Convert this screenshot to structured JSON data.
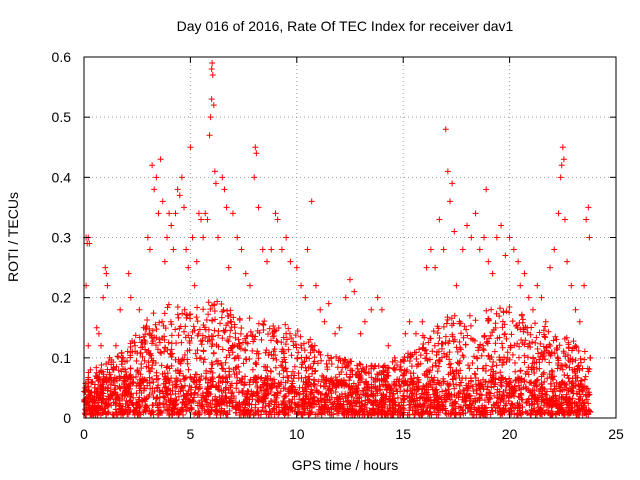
{
  "chart_data": {
    "type": "scatter",
    "title": "Day 016 of 2016, Rate Of TEC Index for receiver dav1",
    "xlabel": "GPS time / hours",
    "ylabel": "ROTI / TECUs",
    "xlim": [
      0,
      25
    ],
    "ylim": [
      0,
      0.6
    ],
    "xticks": [
      0,
      5,
      10,
      15,
      20,
      25
    ],
    "yticks": [
      0,
      0.1,
      0.2,
      0.3,
      0.4,
      0.5,
      0.6
    ],
    "xtick_labels": [
      "0",
      "5",
      "10",
      "15",
      "20",
      "25"
    ],
    "ytick_labels": [
      "0",
      "0.1",
      "0.2",
      "0.3",
      "0.4",
      "0.5",
      "0.6"
    ],
    "grid": true,
    "marker": "plus",
    "colors": {
      "series": "#ff0000",
      "grid": "#a0a0a0",
      "axes": "#000000"
    },
    "series": [
      {
        "points": [
          [
            0.0,
            0.03
          ],
          [
            0.05,
            0.05
          ],
          [
            0.1,
            0.3
          ],
          [
            0.15,
            0.29
          ],
          [
            0.2,
            0.3
          ],
          [
            0.25,
            0.29
          ],
          [
            0.1,
            0.22
          ],
          [
            0.2,
            0.12
          ],
          [
            0.3,
            0.08
          ],
          [
            0.4,
            0.06
          ],
          [
            0.5,
            0.05
          ],
          [
            0.6,
            0.15
          ],
          [
            0.7,
            0.14
          ],
          [
            0.8,
            0.12
          ],
          [
            0.9,
            0.2
          ],
          [
            1.0,
            0.25
          ],
          [
            1.05,
            0.24
          ],
          [
            1.1,
            0.22
          ],
          [
            1.2,
            0.1
          ],
          [
            1.4,
            0.08
          ],
          [
            1.5,
            0.12
          ],
          [
            1.7,
            0.18
          ],
          [
            1.8,
            0.1
          ],
          [
            2.0,
            0.07
          ],
          [
            2.1,
            0.24
          ],
          [
            2.2,
            0.2
          ],
          [
            2.4,
            0.12
          ],
          [
            2.6,
            0.18
          ],
          [
            2.8,
            0.15
          ],
          [
            3.0,
            0.3
          ],
          [
            3.1,
            0.28
          ],
          [
            3.2,
            0.42
          ],
          [
            3.3,
            0.38
          ],
          [
            3.4,
            0.4
          ],
          [
            3.5,
            0.34
          ],
          [
            3.6,
            0.43
          ],
          [
            3.7,
            0.36
          ],
          [
            3.8,
            0.26
          ],
          [
            3.9,
            0.3
          ],
          [
            4.0,
            0.34
          ],
          [
            4.1,
            0.32
          ],
          [
            4.2,
            0.28
          ],
          [
            4.3,
            0.34
          ],
          [
            4.4,
            0.38
          ],
          [
            4.5,
            0.37
          ],
          [
            4.6,
            0.4
          ],
          [
            4.7,
            0.35
          ],
          [
            4.8,
            0.28
          ],
          [
            4.9,
            0.25
          ],
          [
            5.0,
            0.45
          ],
          [
            5.1,
            0.3
          ],
          [
            5.2,
            0.22
          ],
          [
            5.3,
            0.26
          ],
          [
            5.4,
            0.34
          ],
          [
            5.5,
            0.33
          ],
          [
            5.6,
            0.3
          ],
          [
            5.7,
            0.34
          ],
          [
            5.8,
            0.33
          ],
          [
            5.9,
            0.47
          ],
          [
            5.95,
            0.5
          ],
          [
            6.0,
            0.53
          ],
          [
            6.0,
            0.58
          ],
          [
            6.02,
            0.59
          ],
          [
            6.05,
            0.57
          ],
          [
            6.1,
            0.52
          ],
          [
            6.15,
            0.41
          ],
          [
            6.2,
            0.39
          ],
          [
            6.3,
            0.3
          ],
          [
            6.5,
            0.4
          ],
          [
            6.6,
            0.38
          ],
          [
            6.7,
            0.35
          ],
          [
            6.8,
            0.25
          ],
          [
            7.0,
            0.34
          ],
          [
            7.2,
            0.3
          ],
          [
            7.4,
            0.28
          ],
          [
            7.6,
            0.24
          ],
          [
            7.8,
            0.22
          ],
          [
            8.0,
            0.4
          ],
          [
            8.05,
            0.45
          ],
          [
            8.1,
            0.44
          ],
          [
            8.2,
            0.35
          ],
          [
            8.4,
            0.28
          ],
          [
            8.6,
            0.26
          ],
          [
            8.8,
            0.28
          ],
          [
            9.0,
            0.34
          ],
          [
            9.1,
            0.33
          ],
          [
            9.3,
            0.28
          ],
          [
            9.5,
            0.3
          ],
          [
            9.7,
            0.26
          ],
          [
            10.0,
            0.25
          ],
          [
            10.2,
            0.22
          ],
          [
            10.4,
            0.2
          ],
          [
            10.5,
            0.28
          ],
          [
            10.7,
            0.36
          ],
          [
            10.9,
            0.22
          ],
          [
            11.1,
            0.18
          ],
          [
            11.3,
            0.16
          ],
          [
            11.5,
            0.19
          ],
          [
            11.8,
            0.14
          ],
          [
            12.0,
            0.15
          ],
          [
            12.3,
            0.2
          ],
          [
            12.5,
            0.23
          ],
          [
            12.7,
            0.21
          ],
          [
            13.0,
            0.14
          ],
          [
            13.2,
            0.16
          ],
          [
            13.5,
            0.18
          ],
          [
            13.8,
            0.2
          ],
          [
            14.0,
            0.18
          ],
          [
            14.3,
            0.12
          ],
          [
            14.6,
            0.1
          ],
          [
            14.9,
            0.08
          ],
          [
            15.1,
            0.14
          ],
          [
            15.3,
            0.16
          ],
          [
            15.6,
            0.14
          ],
          [
            15.9,
            0.16
          ],
          [
            16.1,
            0.25
          ],
          [
            16.3,
            0.28
          ],
          [
            16.5,
            0.25
          ],
          [
            16.7,
            0.33
          ],
          [
            16.9,
            0.28
          ],
          [
            17.0,
            0.48
          ],
          [
            17.1,
            0.41
          ],
          [
            17.2,
            0.36
          ],
          [
            17.3,
            0.39
          ],
          [
            17.4,
            0.31
          ],
          [
            17.5,
            0.22
          ],
          [
            17.8,
            0.28
          ],
          [
            18.0,
            0.32
          ],
          [
            18.2,
            0.3
          ],
          [
            18.4,
            0.34
          ],
          [
            18.6,
            0.28
          ],
          [
            18.8,
            0.3
          ],
          [
            18.9,
            0.38
          ],
          [
            19.0,
            0.26
          ],
          [
            19.2,
            0.24
          ],
          [
            19.4,
            0.3
          ],
          [
            19.6,
            0.32
          ],
          [
            19.8,
            0.27
          ],
          [
            20.0,
            0.3
          ],
          [
            20.2,
            0.28
          ],
          [
            20.4,
            0.26
          ],
          [
            20.5,
            0.22
          ],
          [
            20.7,
            0.24
          ],
          [
            20.9,
            0.2
          ],
          [
            21.1,
            0.18
          ],
          [
            21.3,
            0.22
          ],
          [
            21.5,
            0.2
          ],
          [
            21.7,
            0.16
          ],
          [
            21.9,
            0.25
          ],
          [
            22.1,
            0.28
          ],
          [
            22.3,
            0.34
          ],
          [
            22.4,
            0.4
          ],
          [
            22.45,
            0.42
          ],
          [
            22.5,
            0.45
          ],
          [
            22.55,
            0.43
          ],
          [
            22.6,
            0.33
          ],
          [
            22.7,
            0.26
          ],
          [
            22.9,
            0.22
          ],
          [
            23.1,
            0.18
          ],
          [
            23.3,
            0.16
          ],
          [
            23.5,
            0.22
          ],
          [
            23.6,
            0.33
          ],
          [
            23.7,
            0.35
          ],
          [
            23.75,
            0.3
          ],
          [
            23.8,
            0.1
          ]
        ]
      }
    ],
    "dense_band_profile": [
      [
        0.0,
        0.08
      ],
      [
        1.0,
        0.09
      ],
      [
        2.0,
        0.12
      ],
      [
        3.0,
        0.17
      ],
      [
        4.0,
        0.19
      ],
      [
        5.0,
        0.18
      ],
      [
        6.0,
        0.2
      ],
      [
        7.0,
        0.18
      ],
      [
        8.0,
        0.17
      ],
      [
        9.0,
        0.16
      ],
      [
        10.0,
        0.15
      ],
      [
        11.0,
        0.12
      ],
      [
        12.0,
        0.1
      ],
      [
        13.0,
        0.09
      ],
      [
        14.0,
        0.09
      ],
      [
        15.0,
        0.1
      ],
      [
        16.0,
        0.14
      ],
      [
        17.0,
        0.17
      ],
      [
        18.0,
        0.17
      ],
      [
        19.0,
        0.18
      ],
      [
        20.0,
        0.19
      ],
      [
        21.0,
        0.16
      ],
      [
        22.0,
        0.15
      ],
      [
        23.0,
        0.13
      ],
      [
        23.8,
        0.11
      ]
    ]
  }
}
